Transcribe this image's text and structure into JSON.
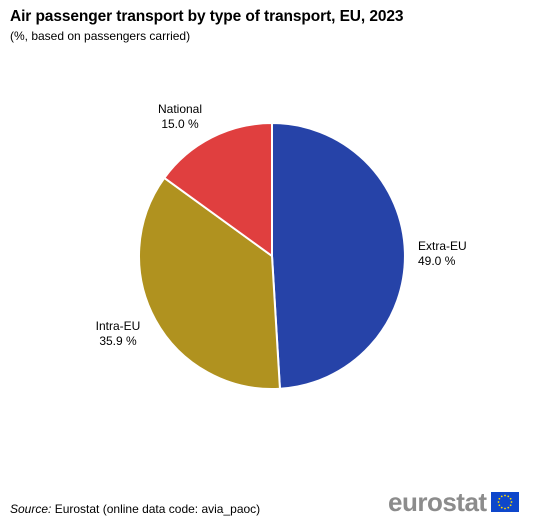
{
  "chart_data": {
    "type": "pie",
    "title": "Air passenger transport by type of transport, EU, 2023",
    "subtitle": "(%, based on passengers carried)",
    "unit": "%",
    "slices": [
      {
        "label": "Extra-EU",
        "value": 49.0,
        "value_text": "49.0 %",
        "color": "#2643a8"
      },
      {
        "label": "Intra-EU",
        "value": 35.9,
        "value_text": "35.9 %",
        "color": "#b0921f"
      },
      {
        "label": "National",
        "value": 15.0,
        "value_text": "15.0 %",
        "color": "#e03f3f"
      }
    ]
  },
  "footer": {
    "source_label": "Source:",
    "source_text": "Eurostat (online data code: avia_paoc)",
    "logo_text": "eurostat"
  }
}
